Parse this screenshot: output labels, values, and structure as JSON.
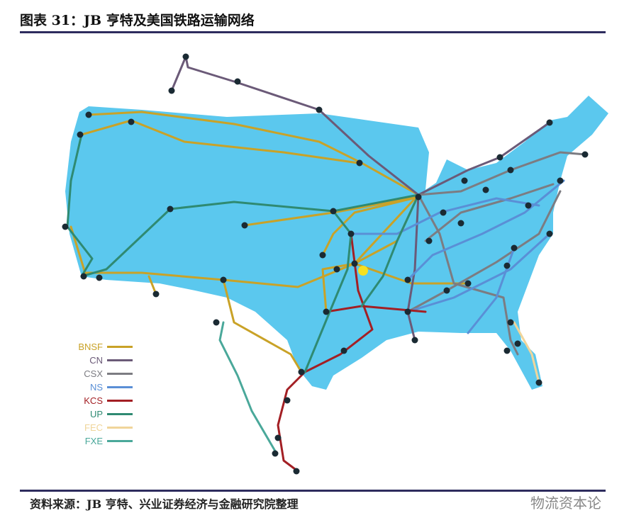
{
  "title": "图表 31：JB 亨特及美国铁路运输网络",
  "source": "资料来源：JB 亨特、兴业证券经济与金融研究院整理",
  "watermark": "物流资本论",
  "map_color": "#5bc8ee",
  "legend": [
    {
      "label": "BNSF",
      "color": "#c9a227"
    },
    {
      "label": "CN",
      "color": "#6b5a78"
    },
    {
      "label": "CSX",
      "color": "#7c7c82"
    },
    {
      "label": "NS",
      "color": "#5a8fd6"
    },
    {
      "label": "KCS",
      "color": "#a31f24"
    },
    {
      "label": "UP",
      "color": "#2f8a72"
    },
    {
      "label": "FEC",
      "color": "#f0d59a"
    },
    {
      "label": "FXE",
      "color": "#4aa89a"
    }
  ]
}
